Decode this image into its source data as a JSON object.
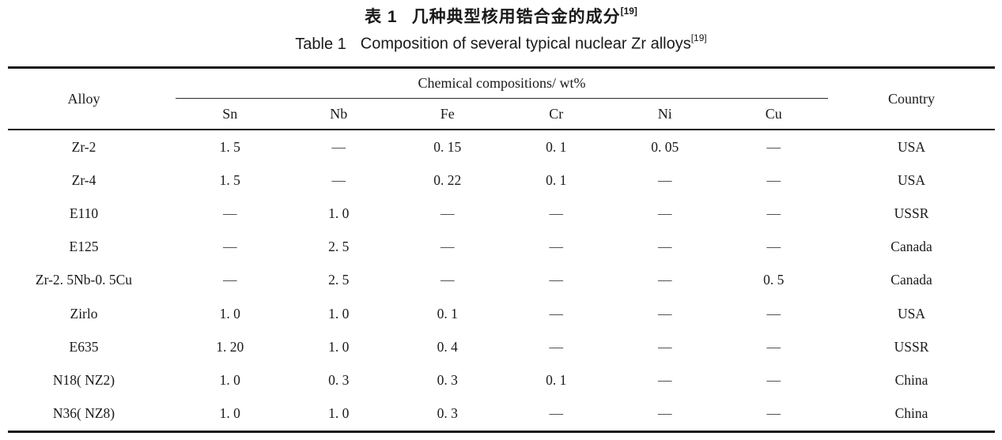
{
  "caption": {
    "zh_label": "表 1",
    "zh_text": "几种典型核用锆合金的成分",
    "zh_ref": "[19]",
    "en_label": "Table 1",
    "en_text": "Composition of several typical nuclear Zr alloys",
    "en_ref": "[19]"
  },
  "table": {
    "header": {
      "alloy": "Alloy",
      "group": "Chemical compositions/ wt%",
      "country": "Country",
      "elements": [
        "Sn",
        "Nb",
        "Fe",
        "Cr",
        "Ni",
        "Cu"
      ]
    },
    "rows": [
      {
        "alloy": "Zr-2",
        "values": [
          "1. 5",
          "—",
          "0. 15",
          "0. 1",
          "0. 05",
          "—"
        ],
        "country": "USA"
      },
      {
        "alloy": "Zr-4",
        "values": [
          "1. 5",
          "—",
          "0. 22",
          "0. 1",
          "—",
          "—"
        ],
        "country": "USA"
      },
      {
        "alloy": "E110",
        "values": [
          "—",
          "1. 0",
          "—",
          "—",
          "—",
          "—"
        ],
        "country": "USSR"
      },
      {
        "alloy": "E125",
        "values": [
          "—",
          "2. 5",
          "—",
          "—",
          "—",
          "—"
        ],
        "country": "Canada"
      },
      {
        "alloy": "Zr-2. 5Nb-0. 5Cu",
        "values": [
          "—",
          "2. 5",
          "—",
          "—",
          "—",
          "0. 5"
        ],
        "country": "Canada"
      },
      {
        "alloy": "Zirlo",
        "values": [
          "1. 0",
          "1. 0",
          "0. 1",
          "—",
          "—",
          "—"
        ],
        "country": "USA"
      },
      {
        "alloy": "E635",
        "values": [
          "1. 20",
          "1. 0",
          "0. 4",
          "—",
          "—",
          "—"
        ],
        "country": "USSR"
      },
      {
        "alloy": "N18( NZ2)",
        "values": [
          "1. 0",
          "0. 3",
          "0. 3",
          "0. 1",
          "—",
          "—"
        ],
        "country": "China"
      },
      {
        "alloy": "N36( NZ8)",
        "values": [
          "1. 0",
          "1. 0",
          "0. 3",
          "—",
          "—",
          "—"
        ],
        "country": "China"
      }
    ]
  },
  "colors": {
    "background": "#ffffff",
    "text": "#1a1a1a",
    "rule": "#161616"
  }
}
